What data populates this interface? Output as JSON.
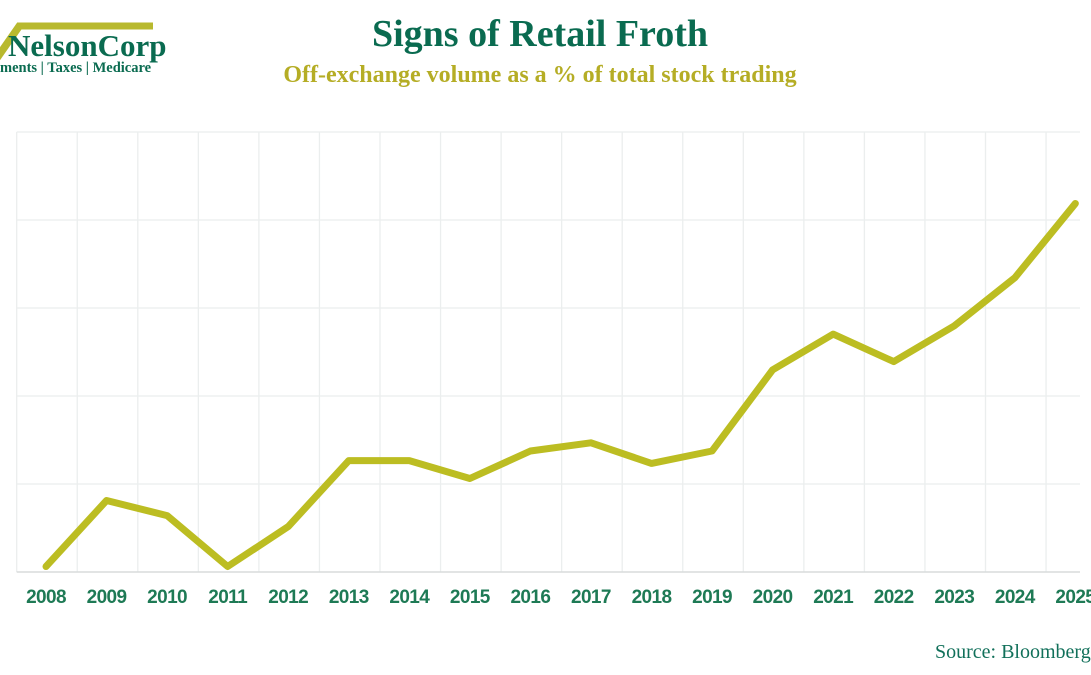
{
  "logo": {
    "brand": "NelsonCorp",
    "tagline": "ments | Taxes | Medicare"
  },
  "header": {
    "title": "Signs of Retail Froth",
    "subtitle": "Off-exchange volume as a % of total stock trading"
  },
  "footer": {
    "source": "Source: Bloomberg"
  },
  "colors": {
    "brand_green": "#0a6b50",
    "tick_green": "#1e7a55",
    "olive_line": "#bcbd22",
    "olive_accent": "#b8b92e",
    "grid": "#ebeeee",
    "axis": "#d8dcdc",
    "background": "#ffffff"
  },
  "chart_data": {
    "type": "line",
    "title": "Signs of Retail Froth",
    "subtitle": "Off-exchange volume as a % of total stock trading",
    "categories": [
      "2008",
      "2009",
      "2010",
      "2011",
      "2012",
      "2013",
      "2014",
      "2015",
      "2016",
      "2017",
      "2018",
      "2019",
      "2020",
      "2021",
      "2022",
      "2023",
      "2024",
      "2025"
    ],
    "series": [
      {
        "name": "Off-exchange volume as a % of total stock trading",
        "values": [
          25.4,
          30.2,
          29.1,
          25.4,
          28.3,
          33.1,
          33.1,
          31.8,
          33.8,
          34.4,
          32.9,
          33.8,
          39.7,
          42.3,
          40.3,
          42.9,
          46.4,
          51.8
        ]
      }
    ],
    "xlabel": "",
    "ylabel": "",
    "ylim": [
      25,
      57
    ],
    "y_axis_labels_visible": false,
    "grid": true,
    "legend": false,
    "annotations": [],
    "source": "Source: Bloomberg"
  }
}
